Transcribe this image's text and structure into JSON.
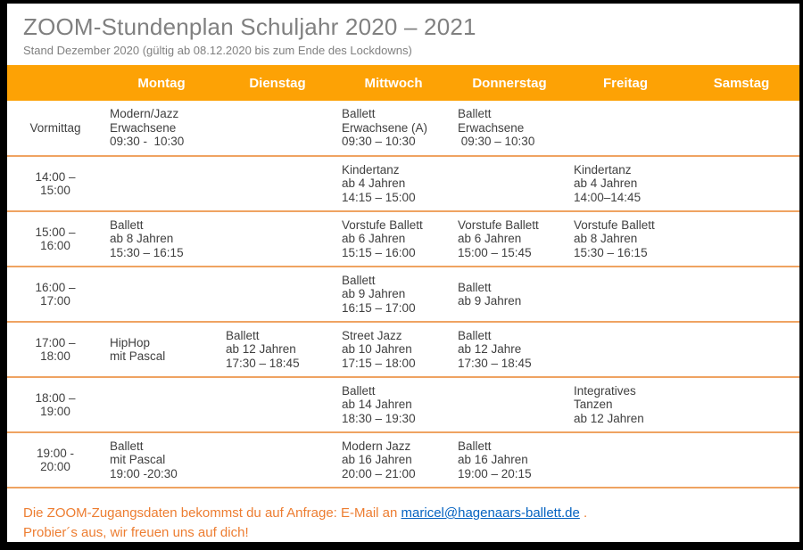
{
  "page": {
    "title": "ZOOM-Stundenplan Schuljahr 2020 – 2021",
    "subtitle": "Stand Dezember 2020 (gültig ab 08.12.2020 bis zum Ende des Lockdowns)"
  },
  "colors": {
    "header_orange": "#FDA205",
    "row_divider_orange": "#EFA362",
    "footer_orange": "#ED7D31",
    "link_blue": "#0563C1",
    "title_gray": "#808080",
    "cell_text": "#404040"
  },
  "table": {
    "day_headers": [
      "Montag",
      "Dienstag",
      "Mittwoch",
      "Donnerstag",
      "Freitag",
      "Samstag"
    ],
    "rows": [
      {
        "time": [
          "Vormittag"
        ],
        "cells": [
          [
            "Modern/Jazz",
            "Erwachsene",
            "09:30 -  10:30"
          ],
          [],
          [
            "Ballett",
            "Erwachsene (A)",
            "09:30 – 10:30"
          ],
          [
            "Ballett",
            "Erwachsene",
            " 09:30 – 10:30"
          ],
          [],
          []
        ]
      },
      {
        "time": [
          "14:00 –",
          "15:00"
        ],
        "cells": [
          [],
          [],
          [
            "Kindertanz",
            "ab 4 Jahren",
            "14:15 – 15:00"
          ],
          [],
          [
            "Kindertanz",
            "ab 4 Jahren",
            "14:00–14:45"
          ],
          []
        ]
      },
      {
        "time": [
          "15:00 –",
          "16:00"
        ],
        "cells": [
          [
            "Ballett",
            "ab 8 Jahren",
            "15:30 – 16:15"
          ],
          [],
          [
            "Vorstufe Ballett",
            "ab 6 Jahren",
            "15:15 – 16:00"
          ],
          [
            "Vorstufe Ballett",
            "ab 6 Jahren",
            "15:00 – 15:45"
          ],
          [
            "Vorstufe Ballett",
            "ab 8 Jahren",
            "15:30 – 16:15"
          ],
          []
        ]
      },
      {
        "time": [
          "16:00 –",
          "17:00"
        ],
        "cells": [
          [],
          [],
          [
            "Ballett",
            "ab 9 Jahren",
            "16:15 – 17:00"
          ],
          [
            "Ballett",
            "ab 9 Jahren"
          ],
          [],
          []
        ]
      },
      {
        "time": [
          "17:00 –",
          "18:00"
        ],
        "cells": [
          [
            "HipHop",
            "mit Pascal"
          ],
          [
            "Ballett",
            "ab 12 Jahren",
            "17:30 – 18:45"
          ],
          [
            "Street Jazz",
            "ab 10 Jahren",
            "17:15 – 18:00"
          ],
          [
            "Ballett",
            "ab 12 Jahre",
            "17:30 – 18:45"
          ],
          [],
          []
        ]
      },
      {
        "time": [
          "18:00 –",
          "19:00"
        ],
        "cells": [
          [],
          [],
          [
            "Ballett",
            "ab 14 Jahren",
            "18:30 – 19:30"
          ],
          [],
          [
            "Integratives",
            "Tanzen",
            "ab 12 Jahren"
          ],
          []
        ]
      },
      {
        "time": [
          "19:00 -",
          "20:00"
        ],
        "cells": [
          [
            "Ballett",
            "mit Pascal",
            "19:00 -20:30"
          ],
          [],
          [
            "Modern Jazz",
            "ab 16 Jahren",
            "20:00 – 21:00"
          ],
          [
            "Ballett",
            "ab 16 Jahren",
            "19:00 – 20:15"
          ],
          [],
          []
        ]
      }
    ]
  },
  "footer": {
    "line1_prefix": "Die ZOOM-Zugangsdaten bekommst du auf Anfrage: E-Mail an ",
    "email": "maricel@hagenaars-ballett.de",
    "line1_suffix": " .",
    "line2": "Probier´s aus, wir freuen uns auf dich!"
  }
}
